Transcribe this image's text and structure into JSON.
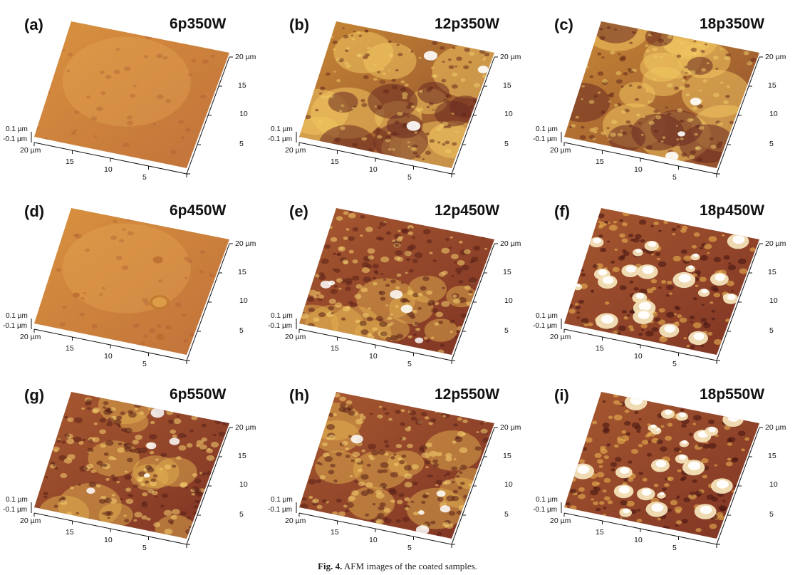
{
  "panels": [
    {
      "label": "(a)",
      "title": "6p350W",
      "style": "smooth"
    },
    {
      "label": "(b)",
      "title": "12p350W",
      "style": "patchy"
    },
    {
      "label": "(c)",
      "title": "18p350W",
      "style": "patchy"
    },
    {
      "label": "(d)",
      "title": "6p450W",
      "style": "smooth-pits"
    },
    {
      "label": "(e)",
      "title": "12p450W",
      "style": "rough"
    },
    {
      "label": "(f)",
      "title": "18p450W",
      "style": "peaks"
    },
    {
      "label": "(g)",
      "title": "6p550W",
      "style": "rough"
    },
    {
      "label": "(h)",
      "title": "12p550W",
      "style": "rough"
    },
    {
      "label": "(i)",
      "title": "18p550W",
      "style": "peaks"
    }
  ],
  "axes": {
    "z_top": "0.1 µm",
    "z_bottom": "-0.1 µm",
    "x_ticks": [
      "20 µm",
      "15",
      "10",
      "5"
    ],
    "y_ticks": [
      "20 µm",
      "15",
      "10",
      "5"
    ]
  },
  "caption": {
    "label": "Fig. 4.",
    "text": "AFM images of the coated samples."
  }
}
